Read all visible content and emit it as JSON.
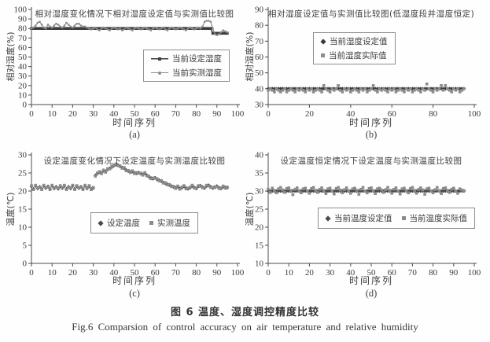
{
  "figure": {
    "caption_zh": "图 6 温度、湿度调控精度比较",
    "caption_en": "Fig.6  Comparsion of control accuracy on air temperature and relative humidity"
  },
  "colors": {
    "axis": "#4c4c4c",
    "text": "#3b3b3b",
    "set_series": "#3d3d3d",
    "measured_series": "#8c8c8c",
    "background": "#fefefe"
  },
  "chart_data": [
    {
      "id": "a",
      "type": "line",
      "title": "相对湿度变化情况下相对湿度设定值与实测值比较图",
      "xlabel": "时间序列",
      "ylabel": "相对湿度(%)",
      "sublabel": "(a)",
      "xlim": [
        0,
        100
      ],
      "ylim": [
        0,
        100
      ],
      "xticks": [
        0,
        10,
        20,
        30,
        40,
        50,
        60,
        70,
        80,
        90,
        100
      ],
      "yticks": [
        0,
        10,
        20,
        30,
        40,
        50,
        60,
        70,
        80,
        90,
        100
      ],
      "x_start": 0,
      "x_step": 1,
      "grid": false,
      "legend": {
        "position": "right-middle",
        "orientation": "vertical",
        "items": [
          {
            "label": "当前设定湿度",
            "marker": "line-square"
          },
          {
            "label": "当前实测湿度",
            "marker": "line-dot"
          }
        ]
      },
      "series": [
        {
          "name": "当前设定湿度",
          "style": "line",
          "marker": "square",
          "color": "#3d3d3d",
          "width": 1.6,
          "values": [
            80,
            80,
            80,
            80,
            80,
            80,
            80,
            80,
            80,
            80,
            80,
            80,
            80,
            80,
            80,
            80,
            80,
            80,
            80,
            80,
            80,
            80,
            80,
            80,
            80,
            80,
            80,
            80,
            80,
            80,
            80,
            80,
            80,
            80,
            80,
            80,
            80,
            80,
            80,
            80,
            80,
            80,
            80,
            80,
            80,
            80,
            80,
            80,
            80,
            80,
            80,
            80,
            80,
            80,
            80,
            80,
            80,
            80,
            80,
            80,
            80,
            80,
            80,
            80,
            80,
            80,
            80,
            80,
            80,
            80,
            80,
            80,
            80,
            80,
            80,
            80,
            80,
            80,
            80,
            80,
            80,
            80,
            80,
            80,
            80,
            80,
            80,
            80,
            75,
            75,
            75,
            75,
            75,
            75,
            75,
            75
          ]
        },
        {
          "name": "当前实测湿度",
          "style": "line",
          "marker": "dot",
          "color": "#8c8c8c",
          "width": 1.2,
          "values": [
            80,
            81,
            83,
            86,
            87,
            84,
            81,
            80,
            84,
            82,
            81,
            83,
            85,
            84,
            82,
            81,
            83,
            86,
            84,
            82,
            81,
            83,
            85,
            85,
            83,
            82,
            82,
            81,
            80,
            79,
            80,
            81,
            79,
            78,
            80,
            81,
            80,
            79,
            78,
            80,
            81,
            80,
            79,
            80,
            78,
            79,
            81,
            80,
            79,
            78,
            80,
            81,
            80,
            79,
            80,
            81,
            80,
            79,
            78,
            80,
            81,
            80,
            79,
            80,
            81,
            79,
            78,
            80,
            81,
            80,
            79,
            80,
            81,
            80,
            79,
            78,
            80,
            81,
            80,
            79,
            80,
            81,
            80,
            82,
            87,
            88,
            88,
            87,
            80,
            74,
            73,
            74,
            76,
            78,
            77,
            76
          ]
        }
      ]
    },
    {
      "id": "b",
      "type": "scatter",
      "title": "相对湿度设定值与实测值比较图(低湿度段并湿度恒定)",
      "xlabel": "时间序列",
      "ylabel": "相对湿度(%)",
      "sublabel": "(b)",
      "xlim": [
        0,
        100
      ],
      "ylim": [
        30,
        90
      ],
      "xticks": [
        0,
        20,
        40,
        60,
        80,
        100
      ],
      "yticks": [
        30,
        40,
        50,
        60,
        70,
        80,
        90
      ],
      "x_start": 0,
      "x_step": 1,
      "grid": false,
      "legend": {
        "position": "center-upper",
        "orientation": "vertical",
        "items": [
          {
            "label": "当前湿度设定值",
            "marker": "diamond"
          },
          {
            "label": "当前湿度实际值",
            "marker": "square"
          }
        ]
      },
      "series": [
        {
          "name": "当前湿度设定值",
          "style": "line",
          "marker": "diamond",
          "color": "#3d3d3d",
          "width": 1.2,
          "values": [
            40,
            40,
            40,
            40,
            40,
            40,
            40,
            40,
            40,
            40,
            40,
            40,
            40,
            40,
            40,
            40,
            40,
            40,
            40,
            40,
            40,
            40,
            40,
            40,
            40,
            40,
            40,
            40,
            40,
            40,
            40,
            40,
            40,
            40,
            40,
            40,
            40,
            40,
            40,
            40,
            40,
            40,
            40,
            40,
            40,
            40,
            40,
            40,
            40,
            40,
            40,
            40,
            40,
            40,
            40,
            40,
            40,
            40,
            40,
            40,
            40,
            40,
            40,
            40,
            40,
            40,
            40,
            40,
            40,
            40,
            40,
            40,
            40,
            40,
            40,
            40,
            40,
            40,
            40,
            40,
            40,
            40,
            40,
            40,
            40,
            40,
            40,
            40,
            40,
            40,
            40,
            40,
            40,
            40,
            40,
            40
          ]
        },
        {
          "name": "当前湿度实际值",
          "style": "scatter",
          "marker": "square",
          "color": "#8c8c8c",
          "values": [
            39,
            40,
            39,
            38,
            40,
            39,
            38,
            39,
            40,
            38,
            39,
            40,
            39,
            38,
            40,
            39,
            40,
            39,
            38,
            40,
            39,
            40,
            38,
            39,
            40,
            39,
            38,
            42,
            40,
            39,
            38,
            40,
            39,
            40,
            42,
            39,
            38,
            40,
            39,
            40,
            38,
            39,
            40,
            39,
            38,
            40,
            39,
            40,
            38,
            39,
            40,
            42,
            39,
            38,
            40,
            39,
            40,
            39,
            38,
            40,
            39,
            40,
            38,
            39,
            40,
            39,
            38,
            40,
            39,
            40,
            38,
            39,
            40,
            39,
            38,
            40,
            39,
            43,
            40,
            39,
            38,
            40,
            39,
            40,
            42,
            39,
            42,
            40,
            39,
            38,
            40,
            39,
            40,
            38,
            39,
            40
          ]
        }
      ]
    },
    {
      "id": "c",
      "type": "scatter",
      "title": "设定温度变化情况下设定温度与实测温度比较图",
      "xlabel": "时间序列",
      "ylabel": "温度(℃)",
      "sublabel": "(c)",
      "xlim": [
        0,
        100
      ],
      "ylim": [
        0,
        30
      ],
      "xticks": [
        0,
        10,
        20,
        30,
        40,
        50,
        60,
        70,
        80,
        90,
        100
      ],
      "yticks": [
        0,
        5,
        10,
        15,
        20,
        25,
        30
      ],
      "x_start": 0,
      "x_step": 1,
      "grid": false,
      "legend": {
        "position": "center-lower",
        "orientation": "horizontal",
        "items": [
          {
            "label": "设定温度",
            "marker": "diamond"
          },
          {
            "label": "实测温度",
            "marker": "square"
          }
        ]
      },
      "series": [
        {
          "name": "设定温度",
          "style": "scatter",
          "marker": "diamond",
          "color": "#4a4a4a",
          "values": [
            21.3,
            20.6,
            21.4,
            20.7,
            21.2,
            20.6,
            21.4,
            20.8,
            21.3,
            20.6,
            21.4,
            20.7,
            21.2,
            20.6,
            21.3,
            20.8,
            21.4,
            20.6,
            21.2,
            20.7,
            21.4,
            20.6,
            21.3,
            20.8,
            21.2,
            20.6,
            21.4,
            20.7,
            21.3,
            20.6,
            20.8,
            24.3,
            24.8,
            25.2,
            25.0,
            25.6,
            25.4,
            26.0,
            26.3,
            26.6,
            27.0,
            27.3,
            27.2,
            26.8,
            26.5,
            26.3,
            25.8,
            25.5,
            25.3,
            25.4,
            25.0,
            24.9,
            25.1,
            24.8,
            24.6,
            24.9,
            24.4,
            23.9,
            23.6,
            23.4,
            23.7,
            23.2,
            23.0,
            22.7,
            22.4,
            22.1,
            21.9,
            21.6,
            21.4,
            21.1,
            20.9,
            21.2,
            20.7,
            20.9,
            21.3,
            20.8,
            20.6,
            20.9,
            21.4,
            21.0,
            20.7,
            21.3,
            21.5,
            21.1,
            20.8,
            21.4,
            21.6,
            21.2,
            20.8,
            21.0,
            21.4,
            20.9,
            20.7,
            21.2,
            21.0,
            20.9
          ]
        },
        {
          "name": "实测温度",
          "style": "scatter",
          "marker": "square",
          "color": "#8a8a8a",
          "values": [
            21.5,
            20.4,
            21.6,
            20.9,
            21.0,
            20.4,
            21.6,
            21.0,
            21.1,
            20.4,
            21.6,
            20.9,
            21.0,
            20.8,
            21.5,
            21.0,
            21.6,
            20.4,
            21.0,
            20.9,
            21.6,
            20.4,
            21.5,
            21.0,
            21.0,
            20.4,
            21.6,
            20.9,
            21.5,
            20.4,
            21.0,
            24.1,
            25.0,
            25.4,
            24.8,
            25.8,
            25.2,
            26.2,
            26.1,
            26.8,
            27.2,
            27.5,
            27.0,
            27.0,
            26.3,
            26.5,
            25.6,
            25.7,
            25.1,
            25.6,
            24.8,
            25.1,
            24.9,
            25.0,
            24.4,
            25.1,
            24.2,
            24.1,
            23.4,
            23.6,
            23.5,
            23.4,
            22.8,
            22.9,
            22.2,
            22.3,
            21.7,
            21.8,
            21.2,
            21.3,
            20.7,
            21.4,
            20.5,
            21.1,
            21.5,
            20.6,
            20.8,
            21.1,
            21.6,
            20.8,
            20.9,
            21.5,
            21.3,
            20.9,
            21.0,
            21.6,
            21.4,
            21.0,
            21.0,
            21.2,
            21.2,
            20.7,
            20.9,
            21.4,
            20.8,
            21.1
          ]
        }
      ]
    },
    {
      "id": "d",
      "type": "scatter",
      "title": "设定温度恒定情况下设定温度与实测温度比较图",
      "xlabel": "时间序列",
      "ylabel": "温度(℃)",
      "sublabel": "(d)",
      "xlim": [
        0,
        100
      ],
      "ylim": [
        10,
        40
      ],
      "xticks": [
        0,
        10,
        20,
        30,
        40,
        50,
        60,
        70,
        80,
        90,
        100
      ],
      "yticks": [
        10,
        15,
        20,
        25,
        30,
        35,
        40
      ],
      "x_start": 0,
      "x_step": 1,
      "grid": false,
      "legend": {
        "position": "center-lower",
        "orientation": "horizontal",
        "items": [
          {
            "label": "当前温度设定值",
            "marker": "diamond"
          },
          {
            "label": "当前温度实际值",
            "marker": "square"
          }
        ]
      },
      "series": [
        {
          "name": "当前温度设定值",
          "style": "scatter",
          "marker": "diamond",
          "color": "#4a4a4a",
          "values": [
            30,
            30,
            30,
            30,
            30,
            30,
            30,
            30,
            30,
            30,
            30,
            30,
            30,
            30,
            30,
            30,
            30,
            30,
            30,
            30,
            30,
            30,
            30,
            30,
            30,
            30,
            30,
            30,
            30,
            30,
            30,
            30,
            30,
            30,
            30,
            30,
            30,
            30,
            30,
            30,
            30,
            30,
            30,
            30,
            30,
            30,
            30,
            30,
            30,
            30,
            30,
            30,
            30,
            30,
            30,
            30,
            30,
            30,
            30,
            30,
            30,
            30,
            30,
            30,
            30,
            30,
            30,
            30,
            30,
            30,
            30,
            30,
            30,
            30,
            30,
            30,
            30,
            30,
            30,
            30,
            30,
            30,
            30,
            30,
            30,
            30,
            30,
            30,
            30,
            30,
            30,
            30,
            30,
            30,
            30,
            30
          ]
        },
        {
          "name": "当前温度实际值",
          "style": "scatter",
          "marker": "square",
          "color": "#8a8a8a",
          "values": [
            30.5,
            29.6,
            30.8,
            30.2,
            29.5,
            30.6,
            31.0,
            30.3,
            29.6,
            30.7,
            30.9,
            30.2,
            29.0,
            30.5,
            30.9,
            30.1,
            29.5,
            30.6,
            30.8,
            30.0,
            29.4,
            30.7,
            31.0,
            30.2,
            29.6,
            30.5,
            30.9,
            30.1,
            29.3,
            30.6,
            30.8,
            30.0,
            29.2,
            30.7,
            31.0,
            30.3,
            29.5,
            30.4,
            30.9,
            30.1,
            29.4,
            30.6,
            30.8,
            30.2,
            29.1,
            30.5,
            31.0,
            30.0,
            29.5,
            30.7,
            30.9,
            30.1,
            29.3,
            30.6,
            30.8,
            30.3,
            29.6,
            30.4,
            31.0,
            30.2,
            29.4,
            30.5,
            30.9,
            30.0,
            29.2,
            30.6,
            30.8,
            30.1,
            29.5,
            30.7,
            31.0,
            30.2,
            29.4,
            30.5,
            30.9,
            30.3,
            29.1,
            30.6,
            30.8,
            30.0,
            29.5,
            30.4,
            31.0,
            30.1,
            29.3,
            30.7,
            30.9,
            30.2,
            29.6,
            30.5,
            30.8,
            30.0,
            29.4,
            30.6,
            30.3,
            30.1
          ]
        }
      ]
    }
  ]
}
